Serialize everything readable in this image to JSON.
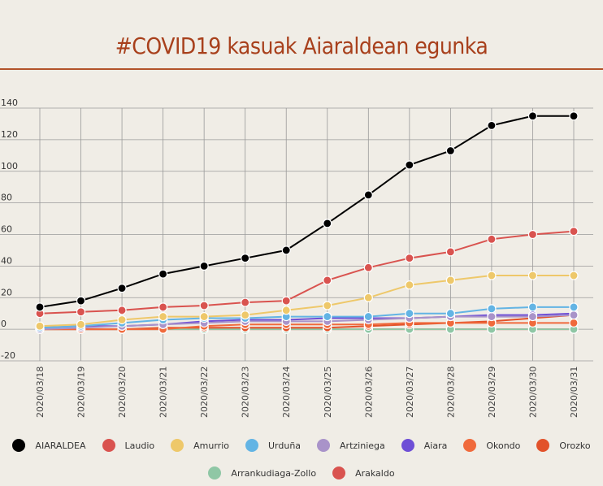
{
  "title": "#COVID19 kasuak Aiaraldean egunka",
  "chart_data": {
    "type": "line",
    "categories": [
      "2020/03/18",
      "2020/03/19",
      "2020/03/20",
      "2020/03/21",
      "2020/03/22",
      "2020/03/23",
      "2020/03/24",
      "2020/03/25",
      "2020/03/26",
      "2020/03/27",
      "2020/03/28",
      "2020/03/29",
      "2020/03/30",
      "2020/03/31"
    ],
    "ylim": [
      -20,
      140
    ],
    "y_ticks": [
      -20,
      0,
      20,
      40,
      60,
      80,
      100,
      120,
      140
    ],
    "y_tick_labels": [
      "-20",
      "0",
      "20",
      "40",
      "60",
      "80",
      "100",
      "120",
      "140"
    ],
    "grid": true,
    "legend_position": "bottom",
    "series": [
      {
        "name": "AIARALDEA",
        "color": "#000000",
        "values": [
          14,
          18,
          26,
          35,
          40,
          45,
          50,
          67,
          85,
          104,
          113,
          129,
          135,
          135
        ]
      },
      {
        "name": "Laudio",
        "color": "#d9534f",
        "values": [
          10,
          11,
          12,
          14,
          15,
          17,
          18,
          31,
          39,
          45,
          49,
          57,
          60,
          62
        ]
      },
      {
        "name": "Amurrio",
        "color": "#eec86a",
        "values": [
          2,
          3,
          6,
          8,
          8,
          9,
          12,
          15,
          20,
          28,
          31,
          34,
          34,
          34
        ]
      },
      {
        "name": "Urduña",
        "color": "#63b4e4",
        "values": [
          1,
          2,
          4,
          6,
          7,
          7,
          8,
          8,
          8,
          10,
          10,
          13,
          14,
          14
        ]
      },
      {
        "name": "Artziniega",
        "color": "#a993c9",
        "values": [
          0,
          1,
          2,
          3,
          4,
          5,
          5,
          5,
          6,
          7,
          8,
          8,
          8,
          9
        ]
      },
      {
        "name": "Aiara",
        "color": "#6e4fd6",
        "values": [
          1,
          2,
          2,
          3,
          5,
          6,
          6,
          7,
          7,
          7,
          8,
          9,
          9,
          10
        ]
      },
      {
        "name": "Okondo",
        "color": "#f06a3c",
        "values": [
          0,
          0,
          0,
          0,
          2,
          3,
          3,
          3,
          3,
          4,
          4,
          4,
          4,
          4
        ]
      },
      {
        "name": "Orozko",
        "color": "#e2522a",
        "values": [
          0,
          0,
          0,
          1,
          1,
          1,
          1,
          1,
          2,
          3,
          4,
          5,
          7,
          9
        ]
      },
      {
        "name": "Arrankudiaga-Zollo",
        "color": "#8fc7a5",
        "values": [
          0,
          0,
          0,
          0,
          0,
          0,
          0,
          0,
          0,
          0,
          0,
          0,
          0,
          0
        ]
      },
      {
        "name": "Arakaldo",
        "color": "#d9534f",
        "values": [
          0,
          0,
          0,
          0,
          0,
          0,
          0,
          0,
          0,
          0,
          0,
          0,
          0,
          0
        ]
      }
    ]
  }
}
